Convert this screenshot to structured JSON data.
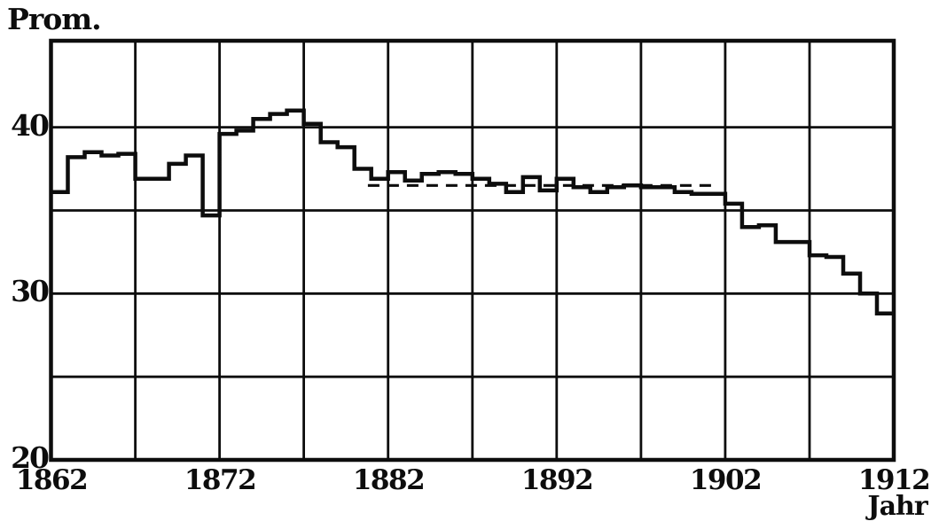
{
  "page": {
    "background_color": "#ffffff",
    "ink_color": "#0d0d0d"
  },
  "chart_data": {
    "type": "line",
    "line_style": "step-after",
    "title": "Prom.",
    "ylabel": "Prom.",
    "xlabel": "Jahr",
    "xlim": [
      1862,
      1912
    ],
    "ylim": [
      20,
      45.2
    ],
    "grid": true,
    "x_grid_step_years": 5,
    "y_gridlines": [
      25,
      30,
      35,
      40
    ],
    "legend": "none",
    "x_axis": {
      "ticks": [
        {
          "label": "1862",
          "year": 1862
        },
        {
          "label": "1872",
          "year": 1872
        },
        {
          "label": "1882",
          "year": 1882
        },
        {
          "label": "1892",
          "year": 1892
        },
        {
          "label": "1902",
          "year": 1902
        },
        {
          "label": "1912",
          "year": 1912
        }
      ]
    },
    "y_axis": {
      "ticks": [
        {
          "label": "40",
          "value": 40
        },
        {
          "label": "30",
          "value": 30
        },
        {
          "label": "20",
          "value": 20
        }
      ]
    },
    "series": [
      {
        "name": "birth-rate-promille-step-curve",
        "style": "solid",
        "start_year": 1862,
        "years": [
          1862,
          1863,
          1864,
          1865,
          1866,
          1867,
          1868,
          1869,
          1870,
          1871,
          1872,
          1873,
          1874,
          1875,
          1876,
          1877,
          1878,
          1879,
          1880,
          1881,
          1882,
          1883,
          1884,
          1885,
          1886,
          1887,
          1888,
          1889,
          1890,
          1891,
          1892,
          1893,
          1894,
          1895,
          1896,
          1897,
          1898,
          1899,
          1900,
          1901,
          1902,
          1903,
          1904,
          1905,
          1906,
          1907,
          1908,
          1909,
          1910,
          1911
        ],
        "values": [
          36.1,
          38.2,
          38.5,
          38.3,
          38.4,
          36.9,
          36.9,
          37.8,
          38.3,
          34.7,
          39.6,
          39.8,
          40.5,
          40.8,
          41.0,
          40.2,
          39.1,
          38.8,
          37.5,
          36.9,
          37.3,
          36.8,
          37.2,
          37.3,
          37.2,
          36.9,
          36.6,
          36.1,
          37.0,
          36.2,
          36.9,
          36.4,
          36.1,
          36.4,
          36.5,
          36.4,
          36.4,
          36.1,
          36.0,
          36.0,
          35.4,
          34.0,
          34.1,
          33.1,
          33.1,
          32.3,
          32.2,
          31.2,
          30.0,
          28.8
        ]
      },
      {
        "name": "dashed-mean-level",
        "style": "dashed",
        "value": 36.5,
        "from_year": 1880.8,
        "to_year": 1901.2
      }
    ]
  }
}
